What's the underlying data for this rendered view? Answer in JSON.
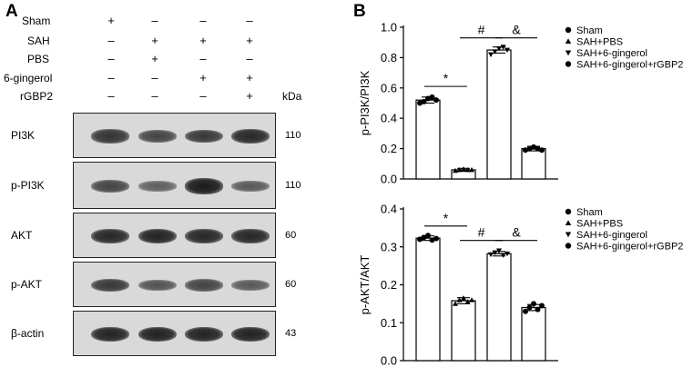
{
  "panel_a": {
    "letter": "A",
    "conditions": [
      {
        "label": "Sham",
        "signs": [
          "+",
          "–",
          "–",
          "–"
        ]
      },
      {
        "label": "SAH",
        "signs": [
          "–",
          "+",
          "+",
          "+"
        ]
      },
      {
        "label": "PBS",
        "signs": [
          "–",
          "+",
          "–",
          "–"
        ]
      },
      {
        "label": "6-gingerol",
        "signs": [
          "–",
          "–",
          "+",
          "+"
        ]
      },
      {
        "label": "rGBP2",
        "signs": [
          "–",
          "–",
          "–",
          "+"
        ]
      }
    ],
    "kda_label": "kDa",
    "blots": [
      {
        "protein": "PI3K",
        "mw": "110",
        "intensity": [
          0.75,
          0.62,
          0.72,
          0.85
        ]
      },
      {
        "protein": "p-PI3K",
        "mw": "110",
        "intensity": [
          0.62,
          0.4,
          0.95,
          0.45
        ]
      },
      {
        "protein": "AKT",
        "mw": "60",
        "intensity": [
          0.85,
          0.88,
          0.85,
          0.85
        ]
      },
      {
        "protein": "p-AKT",
        "mw": "60",
        "intensity": [
          0.72,
          0.5,
          0.62,
          0.45
        ]
      },
      {
        "protein": "β-actin",
        "mw": "43",
        "intensity": [
          0.88,
          0.9,
          0.88,
          0.9
        ]
      }
    ]
  },
  "panel_b": {
    "letter": "B"
  },
  "chart_data": [
    {
      "type": "bar",
      "ylabel": "p-PI3K/PI3K",
      "ylim": [
        0,
        1.0
      ],
      "yticks": [
        "0.0",
        "0.2",
        "0.4",
        "0.6",
        "0.8",
        "1.0"
      ],
      "categories": [
        "Sham",
        "SAH+PBS",
        "SAH+6-gingerol",
        "SAH+6-gingerol+rGBP2"
      ],
      "values": [
        0.52,
        0.06,
        0.85,
        0.2
      ],
      "errors": [
        0.02,
        0.01,
        0.02,
        0.015
      ],
      "points": [
        [
          0.5,
          0.51,
          0.53,
          0.54,
          0.52
        ],
        [
          0.055,
          0.06,
          0.065,
          0.06,
          0.06
        ],
        [
          0.82,
          0.84,
          0.86,
          0.87,
          0.85
        ],
        [
          0.19,
          0.2,
          0.21,
          0.2,
          0.19
        ]
      ],
      "markers": [
        "circle",
        "triangle-up",
        "triangle-down",
        "circle"
      ],
      "significance": [
        {
          "from": 0,
          "to": 1,
          "label": "*",
          "y": 0.61
        },
        {
          "from": 1,
          "to": 2,
          "label": "#",
          "y": 0.93
        },
        {
          "from": 2,
          "to": 3,
          "label": "&",
          "y": 0.93
        }
      ],
      "legend": [
        "Sham",
        "SAH+PBS",
        "SAH+6-gingerol",
        "SAH+6-gingerol+rGBP2"
      ],
      "legend_position": "right"
    },
    {
      "type": "bar",
      "ylabel": "p-AKT/AKT",
      "ylim": [
        0,
        0.4
      ],
      "yticks": [
        "0.0",
        "0.1",
        "0.2",
        "0.3",
        "0.4"
      ],
      "categories": [
        "Sham",
        "SAH+PBS",
        "SAH+6-gingerol",
        "SAH+6-gingerol+rGBP2"
      ],
      "values": [
        0.323,
        0.158,
        0.282,
        0.14
      ],
      "errors": [
        0.006,
        0.008,
        0.006,
        0.008
      ],
      "points": [
        [
          0.32,
          0.325,
          0.33,
          0.318,
          0.322
        ],
        [
          0.15,
          0.16,
          0.165,
          0.155,
          0.16
        ],
        [
          0.28,
          0.285,
          0.29,
          0.278,
          0.282
        ],
        [
          0.13,
          0.14,
          0.15,
          0.135,
          0.145
        ]
      ],
      "markers": [
        "circle",
        "triangle-up",
        "triangle-down",
        "circle"
      ],
      "significance": [
        {
          "from": 0,
          "to": 1,
          "label": "*",
          "y": 0.355
        },
        {
          "from": 1,
          "to": 2,
          "label": "#",
          "y": 0.317
        },
        {
          "from": 2,
          "to": 3,
          "label": "&",
          "y": 0.317
        }
      ],
      "legend": [
        "Sham",
        "SAH+PBS",
        "SAH+6-gingerol",
        "SAH+6-gingerol+rGBP2"
      ],
      "legend_position": "right"
    }
  ]
}
